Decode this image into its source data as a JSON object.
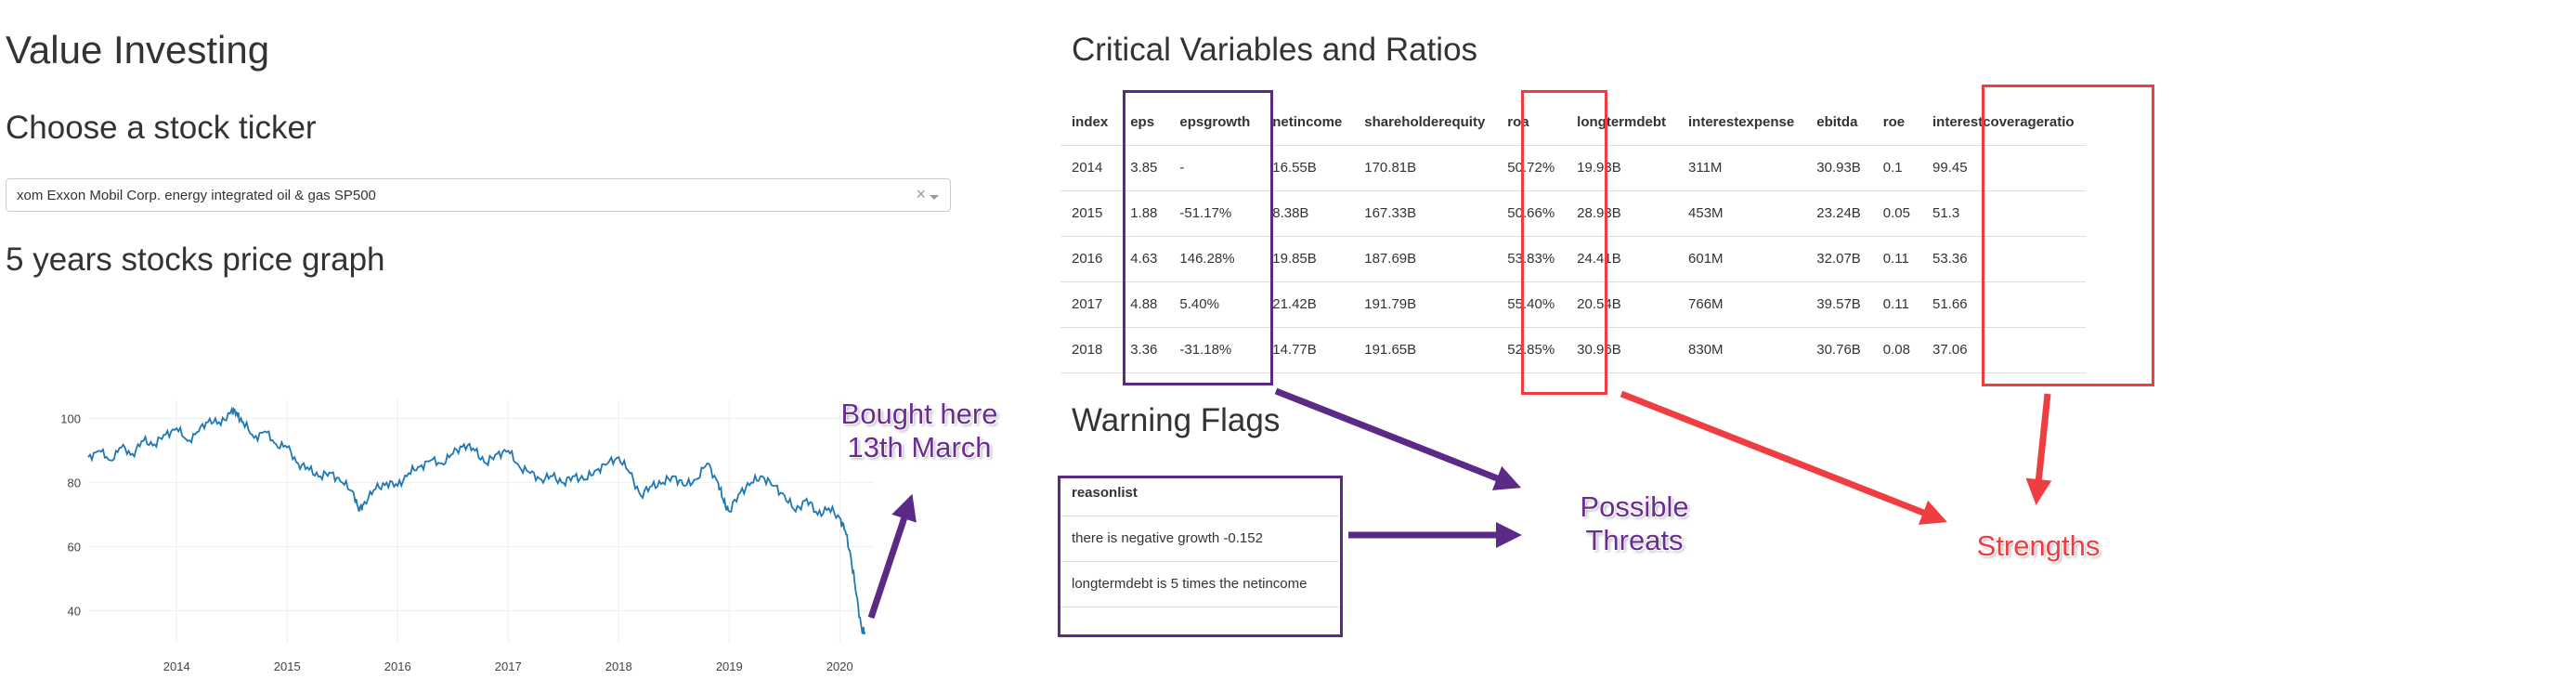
{
  "page": {
    "title": "Value Investing",
    "ticker_heading": "Choose a stock ticker",
    "graph_heading": "5 years stocks price graph",
    "ratios_heading": "Critical Variables and Ratios",
    "flags_heading": "Warning Flags"
  },
  "dropdown": {
    "value": "xom Exxon Mobil Corp. energy integrated oil & gas SP500",
    "clear_icon": "×"
  },
  "ratios_table": {
    "columns": [
      "index",
      "eps",
      "epsgrowth",
      "netincome",
      "shareholderequity",
      "roa",
      "longtermdebt",
      "interestexpense",
      "ebitda",
      "roe",
      "interestcoverageratio"
    ],
    "rows": [
      [
        "2014",
        "3.85",
        "-",
        "16.55B",
        "170.81B",
        "50.72%",
        "19.93B",
        "311M",
        "30.93B",
        "0.1",
        "99.45"
      ],
      [
        "2015",
        "1.88",
        "-51.17%",
        "8.38B",
        "167.33B",
        "50.66%",
        "28.93B",
        "453M",
        "23.24B",
        "0.05",
        "51.3"
      ],
      [
        "2016",
        "4.63",
        "146.28%",
        "19.85B",
        "187.69B",
        "53.83%",
        "24.41B",
        "601M",
        "32.07B",
        "0.11",
        "53.36"
      ],
      [
        "2017",
        "4.88",
        "5.40%",
        "21.42B",
        "191.79B",
        "55.40%",
        "20.54B",
        "766M",
        "39.57B",
        "0.11",
        "51.66"
      ],
      [
        "2018",
        "3.36",
        "-31.18%",
        "14.77B",
        "191.65B",
        "52.85%",
        "30.96B",
        "830M",
        "30.76B",
        "0.08",
        "37.06"
      ]
    ]
  },
  "flags_table": {
    "column": "reasonlist",
    "rows": [
      "there is negative growth -0.152",
      "longtermdebt is 5 times the netincome"
    ]
  },
  "annotations": {
    "bought": [
      "Bought here",
      "13th March"
    ],
    "threats": [
      "Possible",
      "Threats"
    ],
    "strengths": "Strengths"
  },
  "colors": {
    "purple": "#5b2a86",
    "red": "#ef3e42",
    "line": "#1f77b4"
  },
  "chart_data": {
    "type": "line",
    "title": "",
    "xlabel": "",
    "ylabel": "",
    "x_ticks": [
      "2014",
      "2015",
      "2016",
      "2017",
      "2018",
      "2019",
      "2020"
    ],
    "y_ticks": [
      40,
      60,
      80,
      100
    ],
    "xlim": [
      2013.2,
      2020.3
    ],
    "ylim": [
      30,
      106
    ],
    "grid": true,
    "series": [
      {
        "x": [
          2013.2,
          2013.3,
          2013.4,
          2013.5,
          2013.6,
          2013.7,
          2013.8,
          2013.9,
          2014.0,
          2014.1,
          2014.2,
          2014.3,
          2014.4,
          2014.5,
          2014.55,
          2014.6,
          2014.7,
          2014.8,
          2014.9,
          2015.0,
          2015.1,
          2015.2,
          2015.3,
          2015.4,
          2015.5,
          2015.6,
          2015.65,
          2015.7,
          2015.8,
          2015.9,
          2016.0,
          2016.1,
          2016.2,
          2016.3,
          2016.4,
          2016.5,
          2016.6,
          2016.7,
          2016.8,
          2016.9,
          2017.0,
          2017.1,
          2017.2,
          2017.3,
          2017.4,
          2017.5,
          2017.6,
          2017.7,
          2017.8,
          2017.9,
          2018.0,
          2018.1,
          2018.2,
          2018.3,
          2018.4,
          2018.5,
          2018.6,
          2018.7,
          2018.8,
          2018.9,
          2018.95,
          2019.0,
          2019.1,
          2019.2,
          2019.3,
          2019.4,
          2019.5,
          2019.6,
          2019.7,
          2019.8,
          2019.9,
          2020.0,
          2020.05,
          2020.1,
          2020.15,
          2020.2,
          2020.23
        ],
        "y": [
          88,
          90,
          87,
          91,
          89,
          93,
          92,
          95,
          97,
          93,
          96,
          100,
          98,
          103,
          101,
          99,
          94,
          96,
          92,
          91,
          86,
          84,
          82,
          83,
          80,
          77,
          71,
          74,
          78,
          80,
          79,
          83,
          85,
          87,
          86,
          89,
          92,
          90,
          86,
          89,
          90,
          85,
          83,
          81,
          82,
          80,
          82,
          81,
          84,
          86,
          88,
          83,
          76,
          79,
          80,
          82,
          79,
          81,
          86,
          80,
          74,
          71,
          77,
          80,
          82,
          79,
          76,
          71,
          75,
          70,
          72,
          69,
          65,
          57,
          45,
          34,
          33
        ]
      }
    ]
  }
}
